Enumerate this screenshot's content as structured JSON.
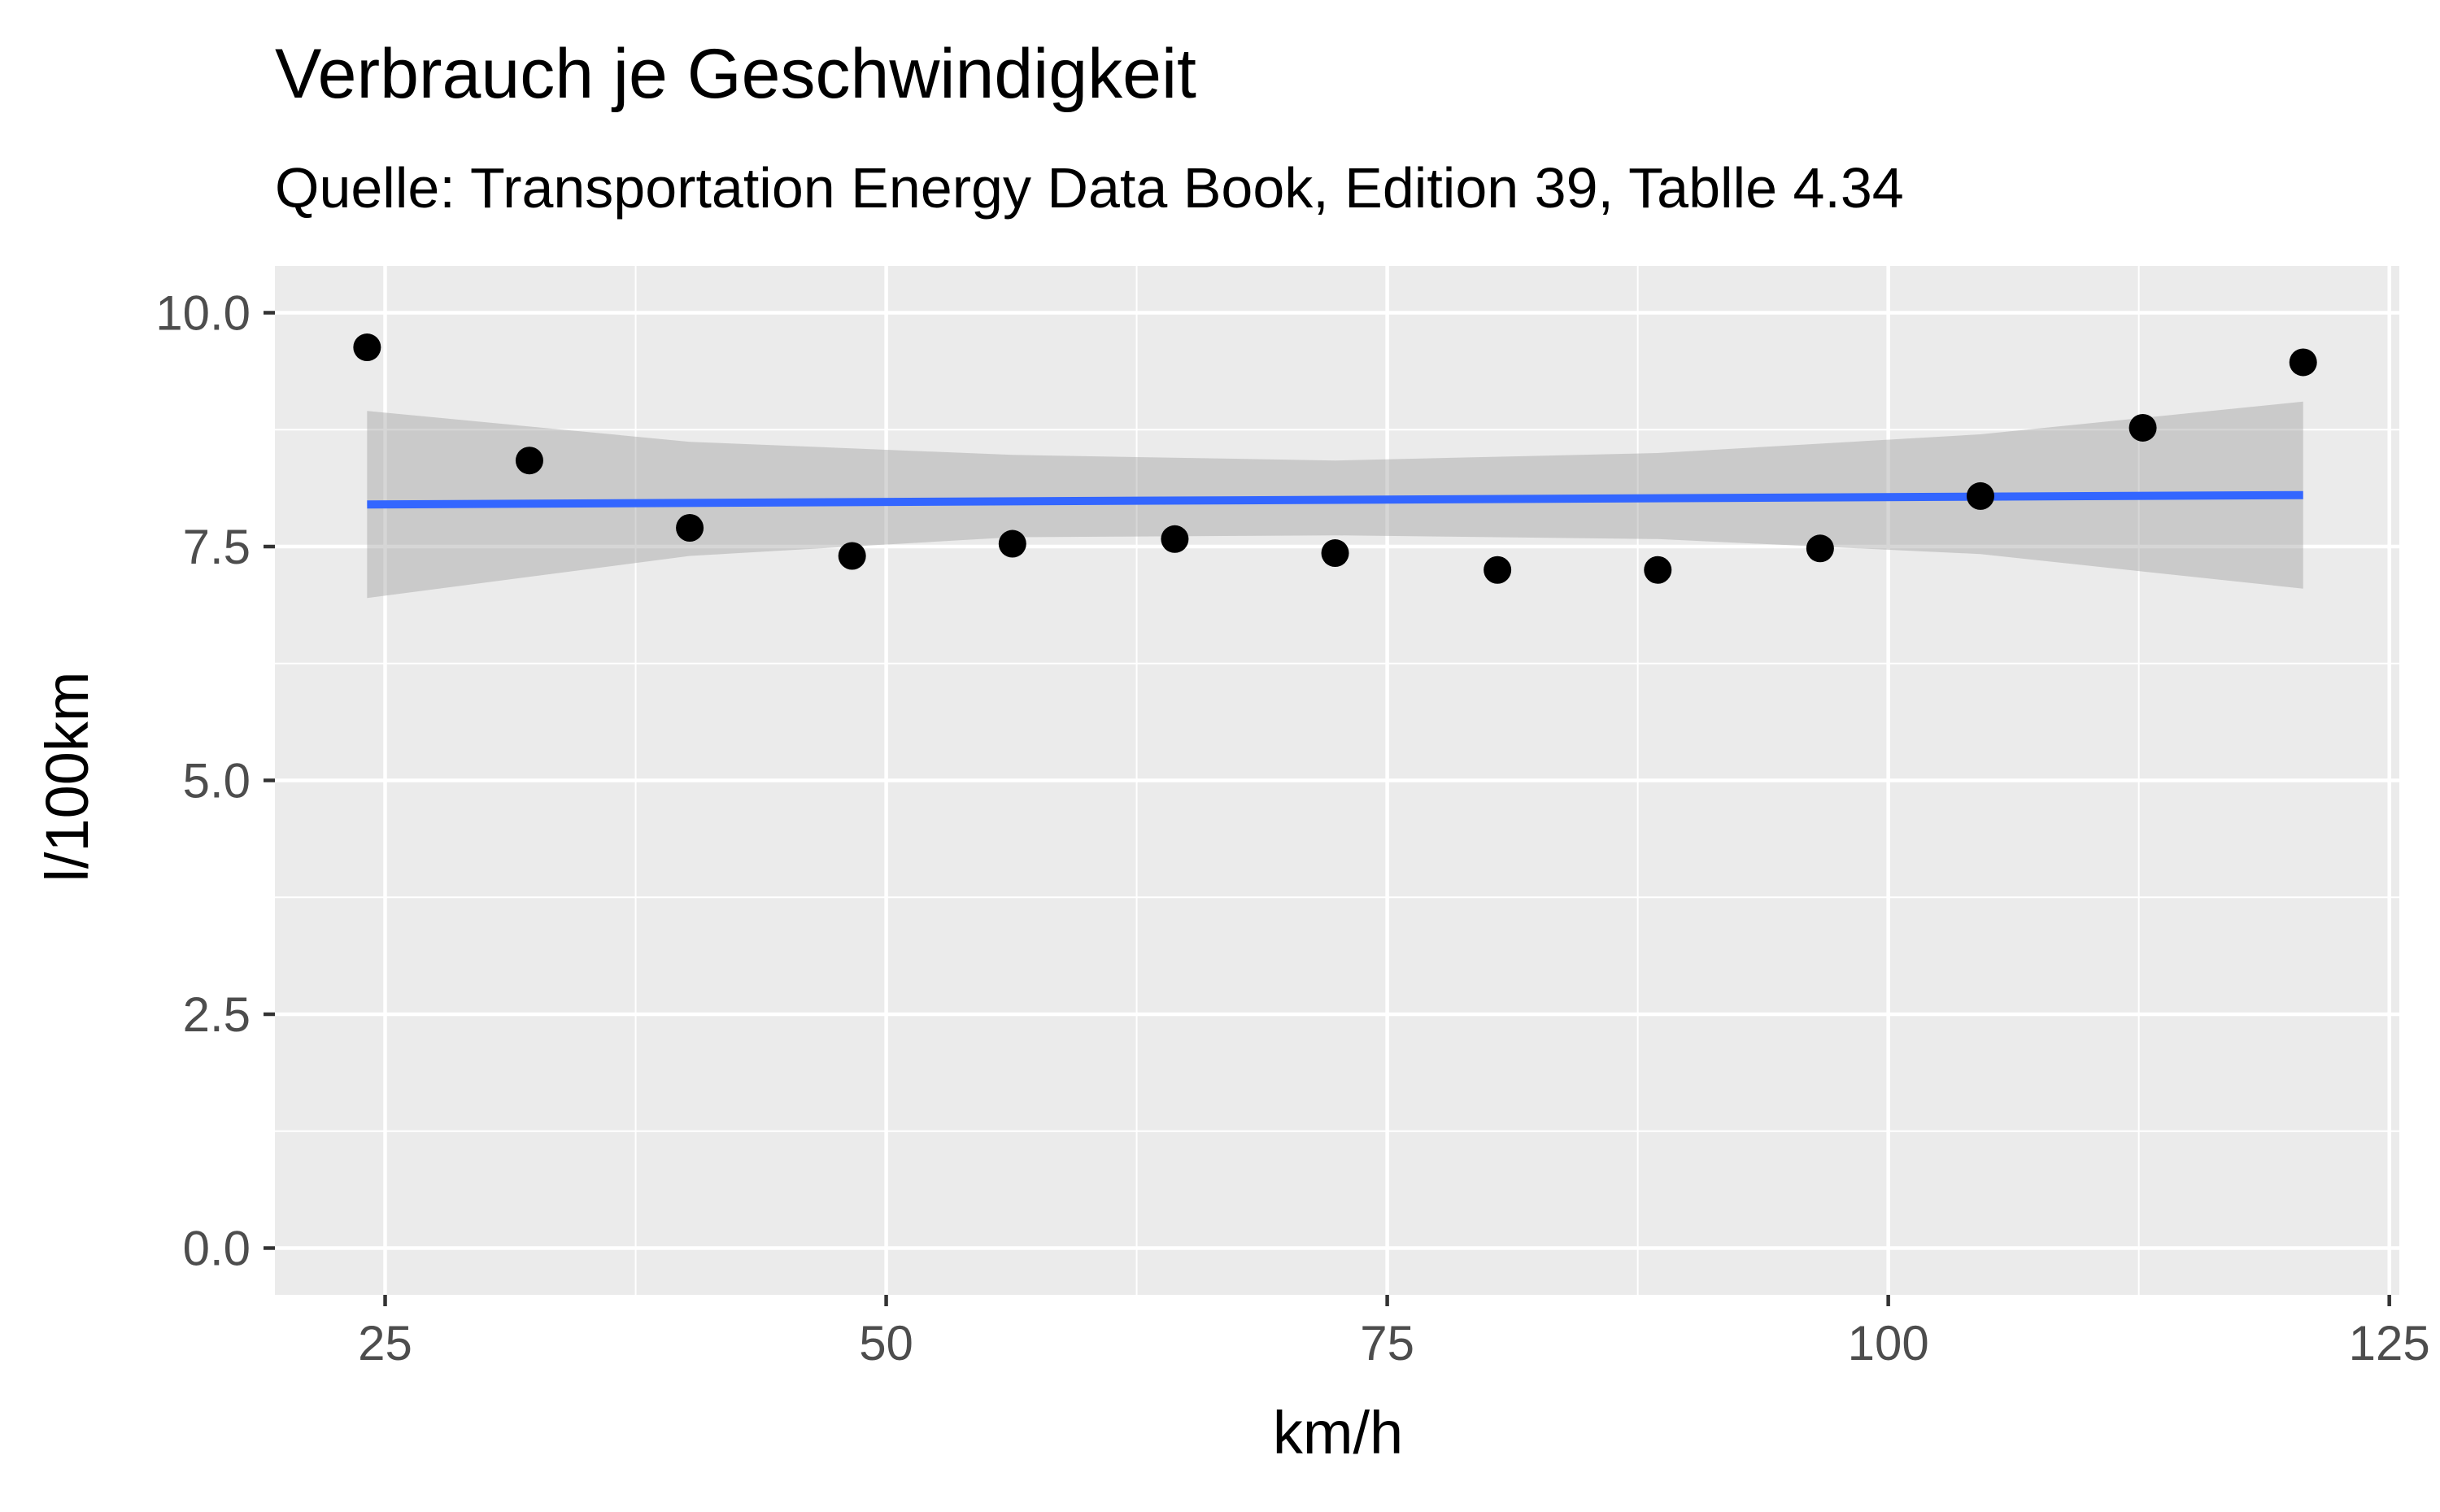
{
  "chart_data": {
    "type": "scatter",
    "title": "Verbrauch je Geschwindigkeit",
    "subtitle": "Quelle: Transportation Energy Data Book, Edition 39, Tablle 4.34",
    "xlabel": "km/h",
    "ylabel": "l/100km",
    "xlim": [
      19.5,
      125.5
    ],
    "ylim": [
      -0.5,
      10.5
    ],
    "x_ticks": [
      25,
      50,
      75,
      100,
      125
    ],
    "x_tick_labels": [
      "25",
      "50",
      "75",
      "100",
      "125"
    ],
    "y_ticks": [
      0,
      2.5,
      5,
      7.5,
      10
    ],
    "y_tick_labels": [
      "0.0",
      "2.5",
      "5.0",
      "7.5",
      "10.0"
    ],
    "grid": true,
    "points": {
      "x": [
        24.1,
        32.2,
        40.2,
        48.3,
        56.3,
        64.4,
        72.4,
        80.5,
        88.5,
        96.6,
        104.6,
        112.7,
        120.7
      ],
      "y": [
        9.63,
        8.42,
        7.7,
        7.4,
        7.53,
        7.58,
        7.43,
        7.25,
        7.25,
        7.48,
        8.04,
        8.77,
        9.47
      ]
    },
    "fit_line": {
      "method": "lm",
      "x": [
        24.1,
        120.7
      ],
      "y": [
        7.95,
        8.05
      ]
    },
    "confidence_band": {
      "x": [
        24.1,
        40.2,
        56.3,
        72.4,
        88.5,
        104.6,
        120.7
      ],
      "lower": [
        6.95,
        7.4,
        7.6,
        7.62,
        7.58,
        7.42,
        7.05
      ],
      "upper": [
        8.95,
        8.62,
        8.48,
        8.42,
        8.5,
        8.7,
        9.05
      ]
    },
    "colors": {
      "points": "#000000",
      "fit_line": "#3366FF",
      "band": "#999999",
      "panel": "#EBEBEB",
      "grid": "#FFFFFF"
    }
  }
}
